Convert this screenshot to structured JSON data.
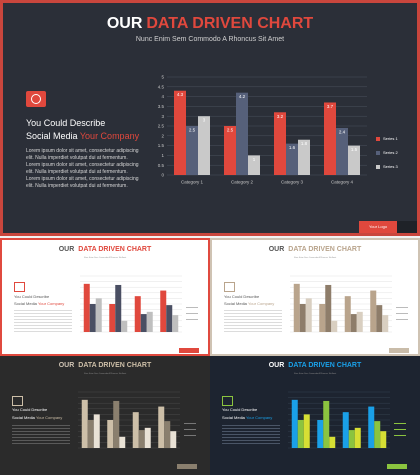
{
  "title_part1": "OUR",
  "title_part2": "DATA DRIVEN CHART",
  "subtitle": "Nunc Enim Sem Commodo A Rhoncus Sit Amet",
  "describe_line1": "You Could Describe",
  "describe_line2_a": "Social Media ",
  "describe_line2_b": "Your Company",
  "paragraph": "Lorem ipsum dolor sit amet, consectetur adipiscing\nelit. Nulla imperdiet volutpat dui at fermentum.\nLorem ipsum dolor sit amet, consectetur adipiscing\nelit. Nulla imperdiet volutpat dui at fermentum.\nLorem ipsum dolor sit amet, consectetur adipiscing\nelit. Nulla imperdiet volutpat dui at fermentum.",
  "footer_label": "Your Logo",
  "colors": {
    "red": "#e0483d",
    "main_bg": "#2b2f38",
    "slate": "#56607a",
    "light_grey": "#c9c9c9",
    "beige_theme": [
      "#b9a48c",
      "#8e7d6a",
      "#d9cfc1"
    ],
    "dark_theme": [
      "#cdbfa8",
      "#8a7f6e",
      "#e9e2d6"
    ],
    "blue_theme": [
      "#1aa0e8",
      "#8bc43f",
      "#d6df34"
    ]
  },
  "chart_data": {
    "type": "bar",
    "categories": [
      "Category 1",
      "Category 2",
      "Category 3",
      "Category 4"
    ],
    "series": [
      {
        "name": "Series 1",
        "values": [
          4.3,
          2.5,
          3.2,
          3.7
        ]
      },
      {
        "name": "Series 2",
        "values": [
          2.5,
          4.2,
          1.6,
          2.4
        ]
      },
      {
        "name": "Series 3",
        "values": [
          3,
          1,
          1.8,
          1.5
        ]
      }
    ],
    "ylim": [
      0,
      5
    ],
    "yticks": [
      0,
      0.5,
      1,
      1.5,
      2,
      2.5,
      3,
      3.5,
      4,
      4.5,
      5
    ],
    "legend": "right",
    "grid": true
  }
}
